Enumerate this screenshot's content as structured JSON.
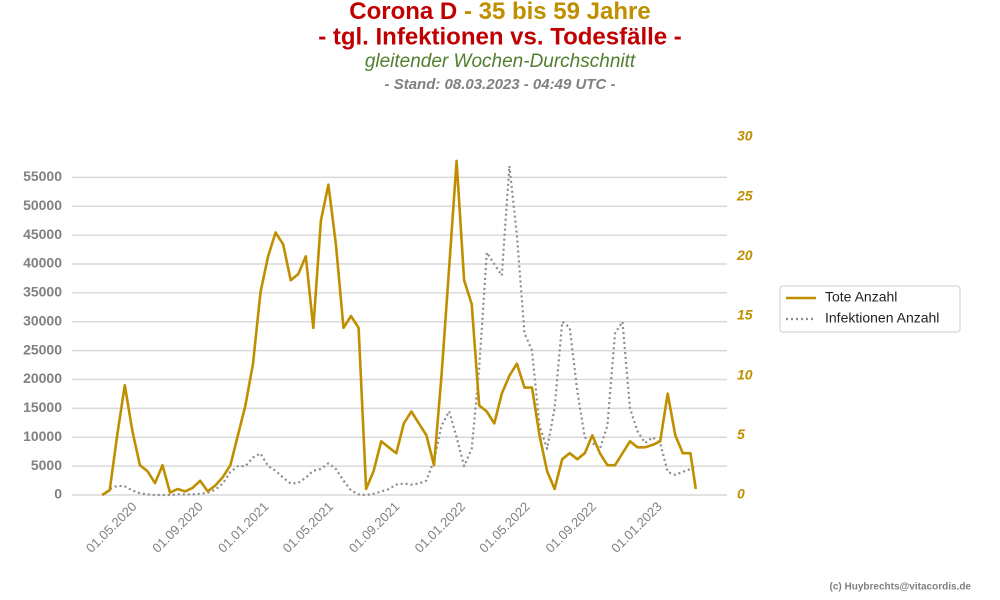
{
  "chart_data": {
    "type": "line",
    "title_1a": "Corona D",
    "title_1b": "- 35 bis 59 Jahre",
    "title_2": "- tgl. Infektionen vs. Todesfälle -",
    "subtitle": "gleitender Wochen-Durchschnitt",
    "subtitle_2": "- Stand: 08.03.2023 - 04:49 UTC -",
    "credit": "(c) Huybrechts@vitacordis.de",
    "x": [
      "01.03.2020",
      "15.03.2020",
      "29.03.2020",
      "12.04.2020",
      "26.04.2020",
      "10.05.2020",
      "24.05.2020",
      "07.06.2020",
      "21.06.2020",
      "05.07.2020",
      "19.07.2020",
      "02.08.2020",
      "16.08.2020",
      "30.08.2020",
      "13.09.2020",
      "27.09.2020",
      "11.10.2020",
      "25.10.2020",
      "08.11.2020",
      "22.11.2020",
      "06.12.2020",
      "20.12.2020",
      "03.01.2021",
      "17.01.2021",
      "31.01.2021",
      "14.02.2021",
      "28.02.2021",
      "14.03.2021",
      "28.03.2021",
      "11.04.2021",
      "25.04.2021",
      "09.05.2021",
      "23.05.2021",
      "06.06.2021",
      "20.06.2021",
      "04.07.2021",
      "18.07.2021",
      "01.08.2021",
      "15.08.2021",
      "29.08.2021",
      "12.09.2021",
      "26.09.2021",
      "10.10.2021",
      "24.10.2021",
      "07.11.2021",
      "21.11.2021",
      "05.12.2021",
      "19.12.2021",
      "02.01.2022",
      "16.01.2022",
      "30.01.2022",
      "13.02.2022",
      "27.02.2022",
      "13.03.2022",
      "27.03.2022",
      "10.04.2022",
      "24.04.2022",
      "08.05.2022",
      "22.05.2022",
      "05.06.2022",
      "19.06.2022",
      "03.07.2022",
      "17.07.2022",
      "31.07.2022",
      "14.08.2022",
      "28.08.2022",
      "11.09.2022",
      "25.09.2022",
      "09.10.2022",
      "23.10.2022",
      "06.11.2022",
      "20.11.2022",
      "04.12.2022",
      "18.12.2022",
      "01.01.2023",
      "15.01.2023",
      "29.01.2023",
      "12.02.2023",
      "26.02.2023",
      "08.03.2023"
    ],
    "series": [
      {
        "name": "Tote Anzahl",
        "color": "#bf8f00",
        "axis": "y2",
        "style": "solid",
        "values": [
          0,
          0.4,
          5,
          9.2,
          5.4,
          2.5,
          2,
          1,
          2.5,
          0.2,
          0.5,
          0.3,
          0.6,
          1.2,
          0.3,
          0.8,
          1.5,
          2.5,
          5,
          7.5,
          11,
          17,
          20,
          22,
          21,
          18,
          18.5,
          20,
          14,
          23,
          26,
          21,
          14,
          15,
          14,
          0.5,
          2,
          4.5,
          4,
          3.5,
          6,
          7,
          6,
          5,
          2.5,
          10,
          19,
          28,
          18,
          16,
          7.5,
          7,
          6,
          8.5,
          10,
          11,
          9,
          9,
          5,
          2,
          0.5,
          3,
          3.5,
          3,
          3.5,
          5,
          3.5,
          2.5,
          2.5,
          3.5,
          4.5,
          4,
          4,
          4.2,
          4.5,
          8.5,
          5,
          3.5,
          3.5,
          0.5
        ]
      },
      {
        "name": "Infektionen Anzahl",
        "color": "#8c8c8c",
        "axis": "y",
        "style": "dotted",
        "values": [
          0,
          1000,
          1600,
          1500,
          800,
          300,
          100,
          0,
          0,
          0,
          100,
          100,
          100,
          200,
          400,
          900,
          2000,
          4000,
          5000,
          5000,
          6500,
          7200,
          5000,
          4200,
          3000,
          2000,
          2100,
          3000,
          4200,
          4500,
          5500,
          4500,
          2500,
          800,
          100,
          0,
          200,
          600,
          1000,
          1800,
          2000,
          1800,
          2000,
          2500,
          6000,
          12000,
          14500,
          10000,
          5000,
          8000,
          22000,
          42000,
          40000,
          38000,
          57000,
          45000,
          28000,
          25000,
          12000,
          8000,
          15000,
          30000,
          29000,
          18000,
          10000,
          9000,
          8000,
          12000,
          28000,
          30000,
          15000,
          11000,
          9000,
          10000,
          9000,
          4000,
          3500,
          4000,
          4500,
          5000
        ]
      }
    ],
    "xlim": [
      "05.01.2020",
      "05.05.2023"
    ],
    "xticks": [
      "01.05.2020",
      "01.09.2020",
      "01.01.2021",
      "01.05.2021",
      "01.09.2021",
      "01.01.2022",
      "01.05.2022",
      "01.09.2022",
      "01.01.2023"
    ],
    "ylim": [
      0,
      62000
    ],
    "yticks": [
      0,
      5000,
      10000,
      15000,
      20000,
      25000,
      30000,
      35000,
      40000,
      45000,
      50000,
      55000
    ],
    "y2lim": [
      0,
      30
    ],
    "y2ticks": [
      0,
      5,
      10,
      15,
      20,
      25,
      30
    ],
    "y2color": "#bf8f00",
    "grid": true,
    "legend": "right"
  }
}
